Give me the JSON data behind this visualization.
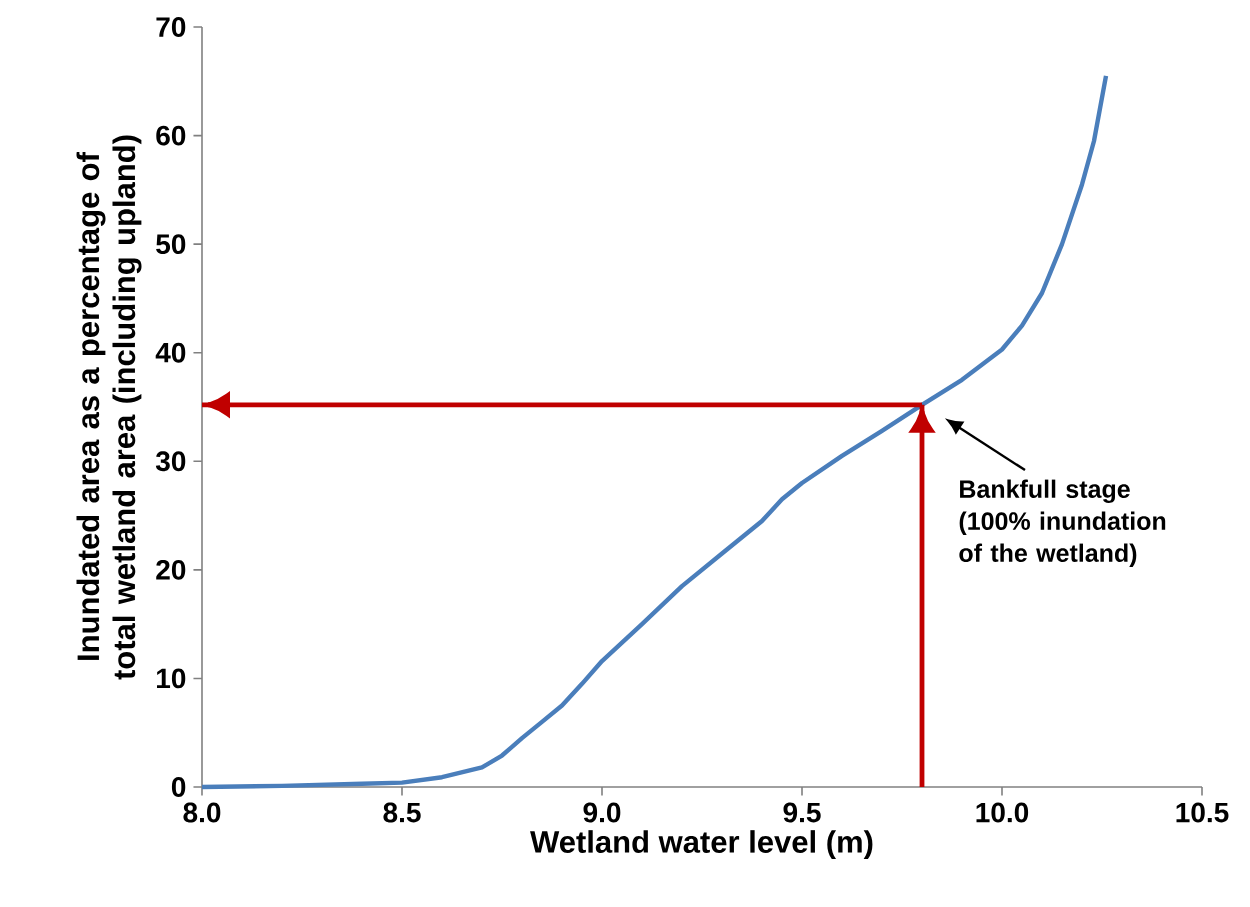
{
  "chart_data": {
    "type": "line",
    "xlabel": "Wetland water level (m)",
    "ylabel": "Inundated area as a percentage of total wetland area (including upland)",
    "xlim": [
      8.0,
      10.5
    ],
    "ylim": [
      0,
      70
    ],
    "xticks": [
      {
        "value": 8.0,
        "label": "8.0"
      },
      {
        "value": 8.5,
        "label": "8.5"
      },
      {
        "value": 9.0,
        "label": "9.0"
      },
      {
        "value": 9.5,
        "label": "9.5"
      },
      {
        "value": 10.0,
        "label": "10.0"
      },
      {
        "value": 10.5,
        "label": "10.5"
      }
    ],
    "yticks": [
      0,
      10,
      20,
      30,
      40,
      50,
      60,
      70
    ],
    "grid": false,
    "marker": "none",
    "line_style": "solid",
    "series": [
      {
        "color": "#4a7ebb",
        "x": [
          8.0,
          8.2,
          8.4,
          8.5,
          8.6,
          8.7,
          8.75,
          8.8,
          8.85,
          8.9,
          8.95,
          9.0,
          9.1,
          9.2,
          9.3,
          9.4,
          9.45,
          9.5,
          9.6,
          9.7,
          9.8,
          9.9,
          10.0,
          10.05,
          10.1,
          10.15,
          10.2,
          10.23,
          10.26
        ],
        "values": [
          0,
          0.1,
          0.3,
          0.4,
          0.9,
          1.8,
          2.9,
          4.5,
          6,
          7.5,
          9.5,
          11.6,
          15,
          18.5,
          21.5,
          24.5,
          26.5,
          28,
          30.5,
          32.8,
          35.2,
          37.5,
          40.3,
          42.5,
          45.5,
          50,
          55.5,
          59.5,
          65.5
        ]
      },
      {
        "type": "line",
        "color": "#c00000",
        "x": [
          9.8,
          9.8
        ],
        "values": [
          0,
          35.2
        ]
      },
      {
        "type": "line",
        "color": "#c00000",
        "x": [
          9.8,
          8.0
        ],
        "values": [
          35.2,
          35.2
        ]
      }
    ],
    "annotations": [
      "Bankfull stage (100% inundation of the wetland)"
    ]
  }
}
